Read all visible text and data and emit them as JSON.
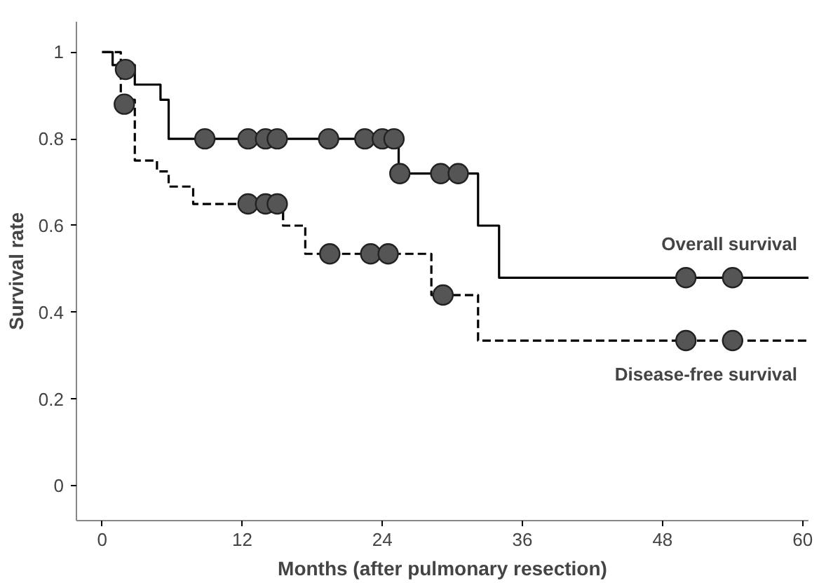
{
  "chart_data": {
    "type": "step",
    "xlabel": "Months (after pulmonary resection)",
    "ylabel": "Survival rate",
    "xlim": [
      -2.2,
      60.5
    ],
    "ylim": [
      -0.08,
      1.07
    ],
    "xticks": [
      0,
      12,
      24,
      36,
      48,
      60
    ],
    "yticks": [
      0,
      0.2,
      0.4,
      0.6,
      0.8,
      1
    ],
    "grid": false,
    "series": [
      {
        "name": "Overall survival",
        "color": "#000000",
        "line_style": "solid",
        "x": [
          0,
          0.9,
          2.8,
          5.0,
          5.7,
          25.4,
          32.2,
          34,
          60.5
        ],
        "values": [
          1,
          0.97,
          0.925,
          0.89,
          0.8,
          0.72,
          0.6,
          0.48,
          0.48
        ]
      },
      {
        "name": "Disease-free survival",
        "color": "#000000",
        "line_style": "dashed",
        "x": [
          0,
          1.6,
          2.8,
          4.7,
          5.7,
          7.8,
          15.5,
          17.4,
          28.2,
          32.2,
          60.5
        ],
        "values": [
          1,
          0.89,
          0.75,
          0.725,
          0.69,
          0.65,
          0.6,
          0.535,
          0.44,
          0.335,
          0.335
        ]
      },
      {
        "type": "scatter",
        "color": "#555555",
        "marker": "circle",
        "x": [
          2,
          8.8,
          12.5,
          14,
          15,
          19.4,
          22.5,
          24,
          25,
          25.5,
          29,
          30.5,
          50,
          54
        ],
        "values": [
          0.96,
          0.8,
          0.8,
          0.8,
          0.8,
          0.8,
          0.8,
          0.8,
          0.8,
          0.72,
          0.72,
          0.72,
          0.48,
          0.48
        ]
      },
      {
        "type": "scatter",
        "color": "#555555",
        "marker": "circle",
        "x": [
          1.9,
          12.5,
          14,
          15,
          19.5,
          23,
          24.5,
          29.2,
          50,
          54
        ],
        "values": [
          0.88,
          0.65,
          0.65,
          0.65,
          0.535,
          0.535,
          0.535,
          0.44,
          0.335,
          0.335
        ]
      }
    ]
  }
}
